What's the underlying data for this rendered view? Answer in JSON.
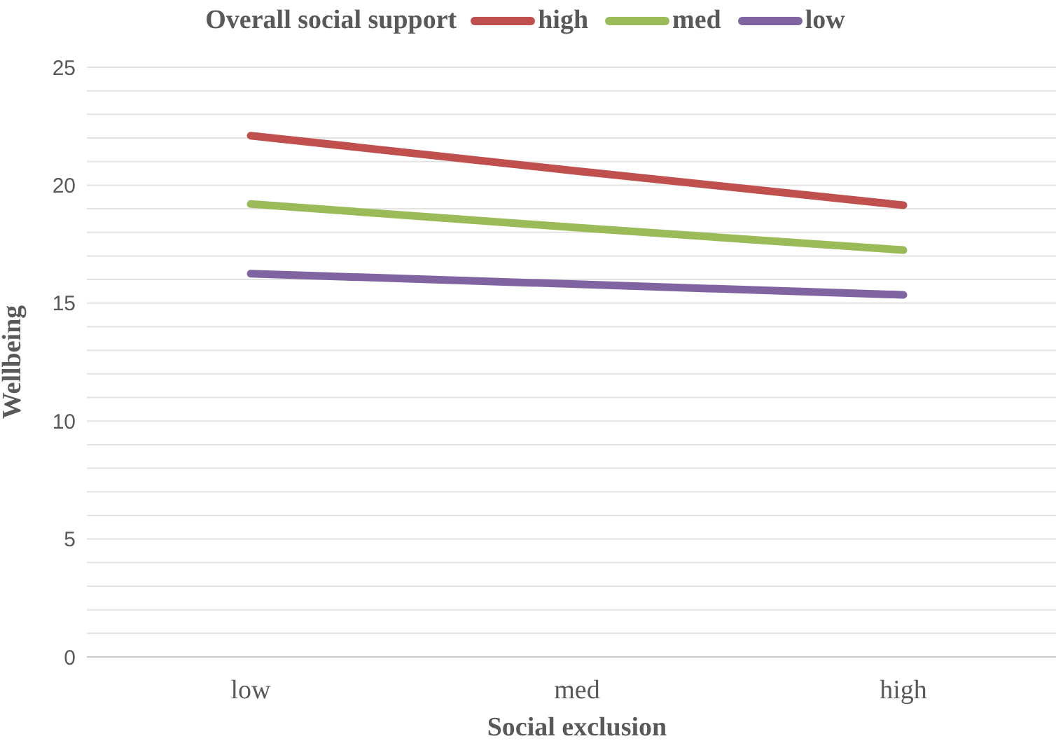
{
  "chart_data": {
    "type": "line",
    "xlabel": "Social exclusion",
    "ylabel": "Wellbeing",
    "legend_title": "Overall social support",
    "categories": [
      "low",
      "med",
      "high"
    ],
    "series": [
      {
        "name": "high",
        "color": "#c0504d",
        "values": [
          22.1,
          20.6,
          19.15
        ]
      },
      {
        "name": "med",
        "color": "#9bbb59",
        "values": [
          19.2,
          18.2,
          17.25
        ]
      },
      {
        "name": "low",
        "color": "#8064a2",
        "values": [
          16.25,
          15.8,
          15.35
        ]
      }
    ],
    "ylim": [
      0,
      25
    ],
    "yticks": [
      0,
      {
        "value": 1,
        "label": null
      },
      {
        "value": 2,
        "label": null
      },
      {
        "value": 3,
        "label": null
      },
      {
        "value": 4,
        "label": null
      },
      5,
      {
        "value": 6,
        "label": null
      },
      {
        "value": 7,
        "label": null
      },
      {
        "value": 8,
        "label": null
      },
      {
        "value": 9,
        "label": null
      },
      10,
      {
        "value": 11,
        "label": null
      },
      {
        "value": 12,
        "label": null
      },
      {
        "value": 13,
        "label": null
      },
      {
        "value": 14,
        "label": null
      },
      15,
      {
        "value": 16,
        "label": null
      },
      {
        "value": 17,
        "label": null
      },
      {
        "value": 18,
        "label": null
      },
      {
        "value": 19,
        "label": null
      },
      20,
      {
        "value": 21,
        "label": null
      },
      {
        "value": 22,
        "label": null
      },
      {
        "value": 23,
        "label": null
      },
      {
        "value": 24,
        "label": null
      },
      25
    ],
    "grid": "y",
    "legend": "top",
    "marker": "none",
    "line_style": "solid"
  }
}
